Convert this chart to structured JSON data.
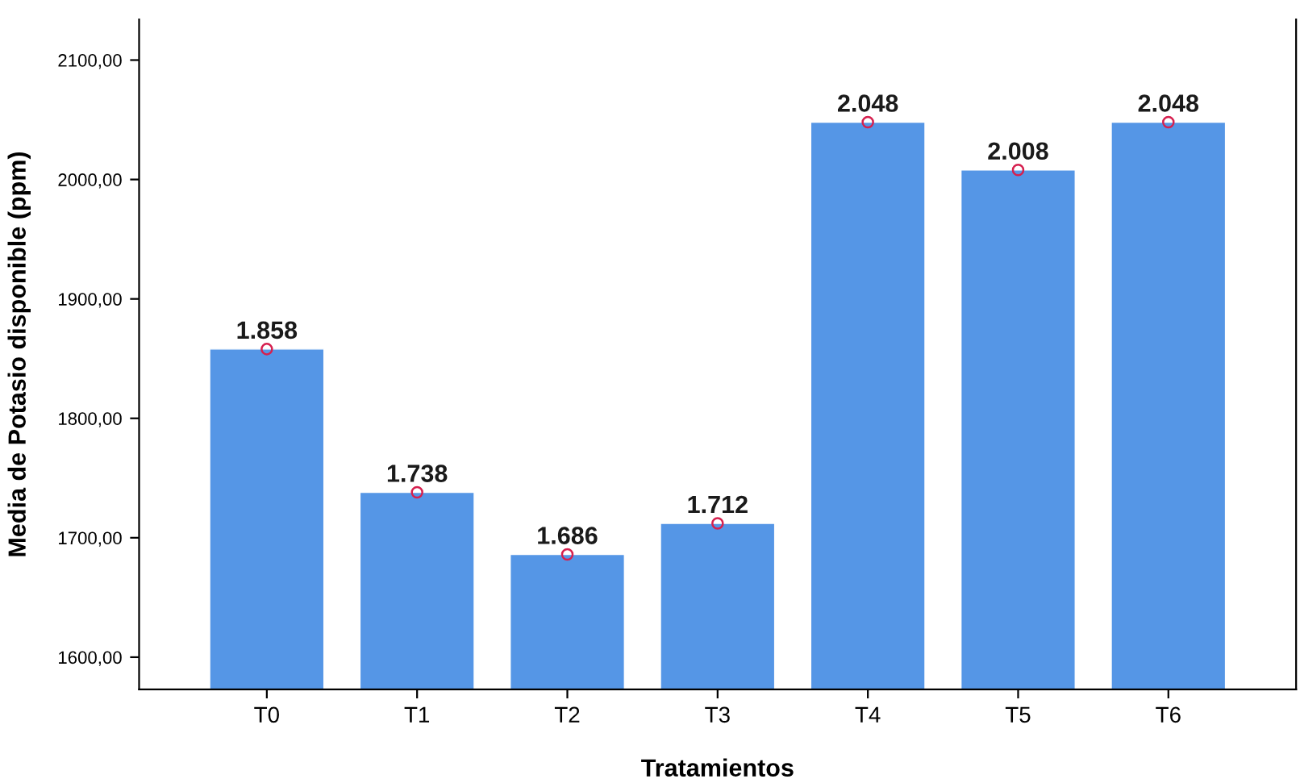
{
  "chart_data": {
    "type": "bar",
    "xlabel": "Tratamientos",
    "ylabel": "Media de Potasio disponible (ppm)",
    "categories": [
      "T0",
      "T1",
      "T2",
      "T3",
      "T4",
      "T5",
      "T6"
    ],
    "series": [
      {
        "color": "#5596e6",
        "values": [
          1858,
          1738,
          1686,
          1712,
          2048,
          2008,
          2048
        ],
        "value_labels": [
          "1.858",
          "1.738",
          "1.686",
          "1.712",
          "2.048",
          "2.008",
          "2.048"
        ]
      },
      {
        "type": "scatter",
        "color": "#d6204f",
        "x": [
          "T0",
          "T1",
          "T2",
          "T3",
          "T4",
          "T5",
          "T6"
        ],
        "values": [
          1858,
          1738,
          1686,
          1712,
          2048,
          2008,
          2048
        ]
      }
    ],
    "marker": "circle",
    "ylim": [
      1573,
      2134
    ],
    "yticks": [
      {
        "value": 1600,
        "label": "1600,00"
      },
      {
        "value": 1700,
        "label": "1700,00"
      },
      {
        "value": 1800,
        "label": "1800,00"
      },
      {
        "value": 1900,
        "label": "1900,00"
      },
      {
        "value": 2000,
        "label": "2000,00"
      },
      {
        "value": 2100,
        "label": "2100,00"
      }
    ],
    "grid": false,
    "legend": false
  }
}
